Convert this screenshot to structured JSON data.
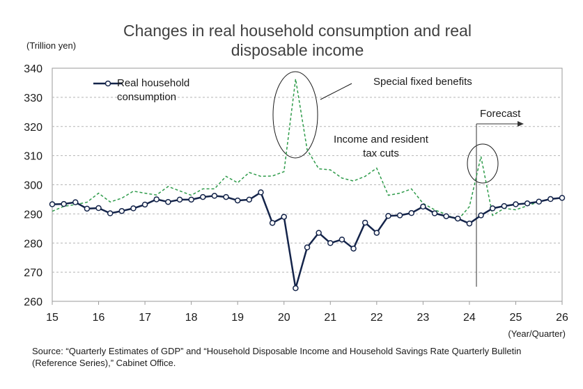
{
  "chart_data": {
    "type": "line",
    "title_lines": [
      "Changes in real household consumption and real",
      "disposable income"
    ],
    "ylabel": "(Trillion yen)",
    "xlabel": "(Year/Quarter)",
    "ylim": [
      260,
      340
    ],
    "yticks": [
      260,
      270,
      280,
      290,
      300,
      310,
      320,
      330,
      340
    ],
    "xlim": [
      2015,
      2026
    ],
    "xtick_labels": [
      "15",
      "16",
      "17",
      "18",
      "19",
      "20",
      "21",
      "22",
      "23",
      "24",
      "25",
      "26"
    ],
    "grid": true,
    "x": [
      2015.0,
      2015.25,
      2015.5,
      2015.75,
      2016.0,
      2016.25,
      2016.5,
      2016.75,
      2017.0,
      2017.25,
      2017.5,
      2017.75,
      2018.0,
      2018.25,
      2018.5,
      2018.75,
      2019.0,
      2019.25,
      2019.5,
      2019.75,
      2020.0,
      2020.25,
      2020.5,
      2020.75,
      2021.0,
      2021.25,
      2021.5,
      2021.75,
      2022.0,
      2022.25,
      2022.5,
      2022.75,
      2023.0,
      2023.25,
      2023.5,
      2023.75,
      2024.0,
      2024.25,
      2024.5,
      2024.75,
      2025.0,
      2025.25,
      2025.5,
      2025.75,
      2026.0
    ],
    "series": [
      {
        "name": "Real household consumption",
        "color": "#14244a",
        "style": "solid-marker",
        "values": [
          293.3,
          293.4,
          294.0,
          291.8,
          292.0,
          290.2,
          291.0,
          291.9,
          293.2,
          295.0,
          294.1,
          294.9,
          294.9,
          295.8,
          296.2,
          295.8,
          294.6,
          294.9,
          297.4,
          286.9,
          289.0,
          264.5,
          278.5,
          283.5,
          280.0,
          281.2,
          278.1,
          287.0,
          283.5,
          289.3,
          289.5,
          290.3,
          292.5,
          290.2,
          289.2,
          288.4,
          286.7,
          289.5,
          291.9,
          292.7,
          293.3,
          293.6,
          294.2,
          295.1,
          295.5
        ]
      },
      {
        "name": "Real disposable income",
        "color": "#2e9b4a",
        "style": "dashed",
        "values": [
          290.9,
          292.6,
          293.2,
          294.0,
          297.1,
          294.1,
          295.4,
          297.8,
          297.1,
          296.5,
          299.4,
          297.9,
          296.4,
          298.6,
          298.6,
          302.9,
          300.7,
          304.2,
          302.9,
          303.0,
          304.5,
          336.3,
          312.0,
          305.5,
          305.1,
          302.3,
          301.3,
          302.9,
          305.7,
          296.4,
          297.1,
          298.6,
          293.6,
          291.4,
          289.8,
          287.9,
          292.5,
          309.7,
          289.5,
          291.9,
          291.4,
          292.8,
          294.1,
          295.2,
          295.4
        ]
      }
    ],
    "annotations": {
      "special": "Special fixed benefits",
      "tax_cuts_1": "Income and resident",
      "tax_cuts_2": "tax cuts",
      "forecast": "Forecast"
    }
  },
  "legend": {
    "line1": "Real household",
    "line2": "consumption"
  },
  "source": {
    "text": "Source: “Quarterly Estimates of GDP” and “Household Disposable Income and Household Savings Rate Quarterly Bulletin (Reference Series),” Cabinet Office."
  },
  "colors": {
    "consumption": "#14244a",
    "income": "#2e9b4a",
    "grid": "#b5b5b5"
  }
}
